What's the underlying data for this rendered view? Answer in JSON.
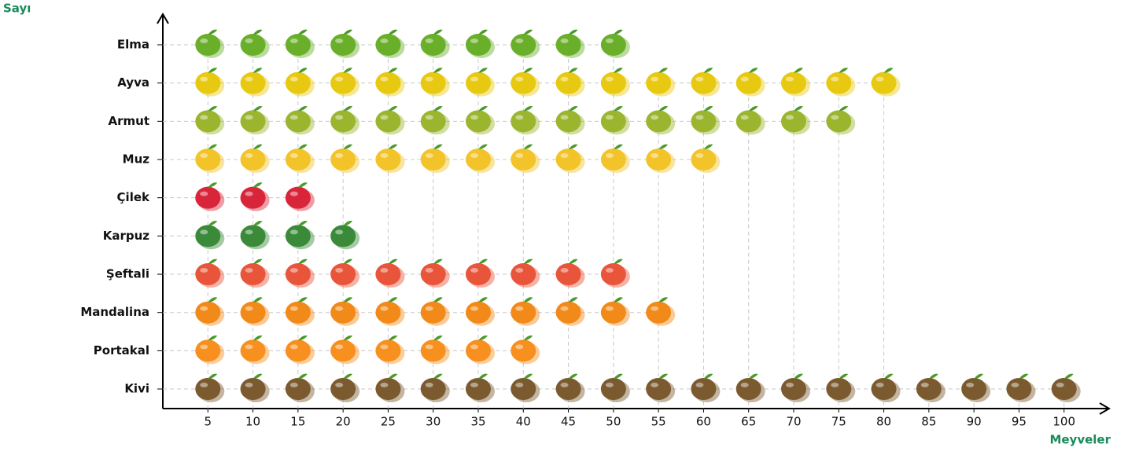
{
  "chart_data": {
    "type": "pictograph",
    "y_label": "Sayı",
    "x_label": "Meyveler",
    "categories": [
      "Elma",
      "Ayva",
      "Armut",
      "Muz",
      "Çilek",
      "Karpuz",
      "Şeftali",
      "Mandalina",
      "Portakal",
      "Kivi"
    ],
    "values": [
      50,
      80,
      75,
      60,
      15,
      20,
      50,
      55,
      40,
      100
    ],
    "colors": [
      "#6aaf2a",
      "#e8c912",
      "#9cb52e",
      "#f2c42a",
      "#d9253a",
      "#3a8a3a",
      "#e8553a",
      "#f28a1a",
      "#f7901e",
      "#7a5a2e"
    ],
    "xlim": [
      0,
      105
    ],
    "xticks": [
      5,
      10,
      15,
      20,
      25,
      30,
      35,
      40,
      45,
      50,
      55,
      60,
      65,
      70,
      75,
      80,
      85,
      90,
      95,
      100
    ],
    "grid": true
  }
}
